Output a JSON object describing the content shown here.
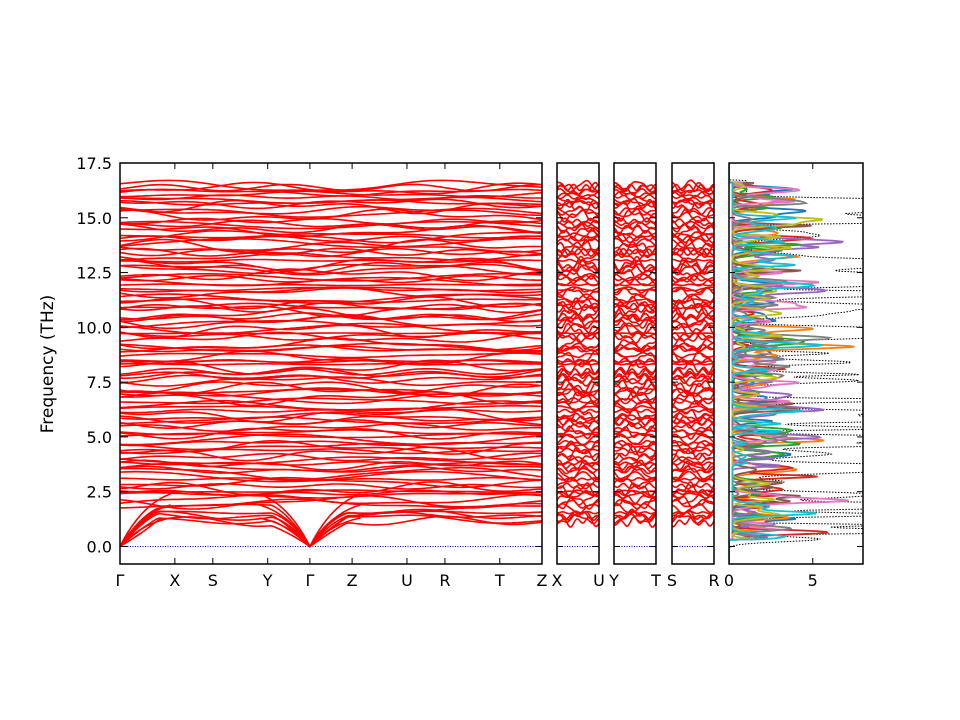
{
  "chart_data": {
    "type": "line",
    "ylabel": "Frequency (THz)",
    "ylim": [
      -0.8,
      17.5
    ],
    "yticks": [
      "0.0",
      "2.5",
      "5.0",
      "7.5",
      "10.0",
      "12.5",
      "15.0",
      "17.5"
    ],
    "ytick_values": [
      0,
      2.5,
      5,
      7.5,
      10,
      12.5,
      15,
      17.5
    ],
    "grid": false,
    "colors": {
      "band": "#ff0000",
      "zero_line": "#0000cc",
      "dos_total": "#000000",
      "dos_partials": [
        "#1f77b4",
        "#ff7f0e",
        "#2ca02c",
        "#d62728",
        "#9467bd",
        "#8c564b",
        "#e377c2",
        "#7f7f7f",
        "#bcbd22",
        "#17becf"
      ]
    },
    "segments": [
      {
        "labels": [
          "Γ",
          "X",
          "S",
          "Y",
          "Γ",
          "Z",
          "U",
          "R",
          "T",
          "Z"
        ],
        "positions": [
          0,
          0.13,
          0.22,
          0.35,
          0.45,
          0.55,
          0.68,
          0.77,
          0.9,
          1.0
        ]
      },
      {
        "labels": [
          "X",
          "U"
        ],
        "positions": [
          0,
          1
        ]
      },
      {
        "labels": [
          "Y",
          "T"
        ],
        "positions": [
          0,
          1
        ]
      },
      {
        "labels": [
          "S",
          "R"
        ],
        "positions": [
          0,
          1
        ]
      }
    ],
    "dos": {
      "xlim": [
        0,
        8
      ],
      "xticks": [
        "0",
        "5"
      ],
      "xtick_values": [
        0,
        5
      ]
    }
  }
}
